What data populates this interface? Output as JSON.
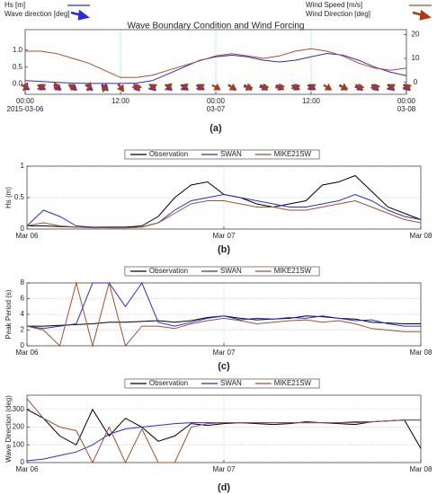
{
  "chart_data": [
    {
      "type": "line",
      "title": "Wave Boundary Condition and Wind Forcing",
      "caption": "(a)",
      "x": [
        0,
        2,
        4,
        6,
        8,
        10,
        12,
        14,
        16,
        18,
        20,
        22,
        24,
        26,
        28,
        30,
        32,
        34,
        36,
        38,
        40,
        42,
        44,
        46,
        48
      ],
      "xlim": [
        0,
        48
      ],
      "xticks": [
        {
          "value": 0,
          "label": "00:00",
          "sublabel": "2015-03-06"
        },
        {
          "value": 12,
          "label": "12:00"
        },
        {
          "value": 24,
          "label": "00:00",
          "sublabel": "03-07"
        },
        {
          "value": 36,
          "label": "12:00"
        },
        {
          "value": 48,
          "label": "00:00",
          "sublabel": "03-08"
        }
      ],
      "ylim": [
        -0.3,
        1.6
      ],
      "yticks": [
        {
          "value": 0,
          "label": "0.0"
        },
        {
          "value": 0.5,
          "label": "0.5"
        },
        {
          "value": 1,
          "label": "1.0"
        }
      ],
      "y2lim": [
        -5,
        22
      ],
      "y2ticks": [
        0,
        10,
        20
      ],
      "grid": true,
      "grid_color": "#5fd0e6",
      "legend": "top-split",
      "series": [
        {
          "name": "Hs [m]",
          "color": "#2b2bd9",
          "values": [
            0.1,
            0.08,
            0.05,
            0.03,
            0.02,
            0.02,
            0.02,
            0.03,
            0.1,
            0.3,
            0.5,
            0.7,
            0.8,
            0.85,
            0.8,
            0.7,
            0.65,
            0.7,
            0.8,
            0.9,
            0.85,
            0.7,
            0.5,
            0.35,
            0.25
          ]
        },
        {
          "name": "Wind Speed [m/s]",
          "color": "#b04a2a",
          "axis": "y2",
          "values": [
            13,
            13,
            12,
            10,
            8,
            5,
            2,
            2,
            3,
            5,
            7,
            9,
            11,
            12,
            11,
            10,
            11,
            13,
            14,
            13,
            11,
            8,
            6,
            5,
            6
          ]
        }
      ],
      "arrows": [
        {
          "name": "Wave direction [deg]",
          "color": "#2b2bd9",
          "values": [
            120,
            120,
            125,
            130,
            130,
            135,
            140,
            140,
            135,
            130,
            125,
            120,
            120,
            120,
            125,
            125,
            120,
            120,
            120,
            125,
            125,
            130,
            130,
            130,
            130
          ]
        },
        {
          "name": "Wind Direction [deg]",
          "color": "#b03a10",
          "values": [
            30,
            60,
            330,
            300,
            20,
            200,
            150,
            90,
            60,
            45,
            50,
            60,
            120,
            130,
            100,
            90,
            80,
            70,
            60,
            120,
            110,
            90,
            80,
            60,
            70
          ]
        }
      ]
    },
    {
      "type": "line",
      "y_label": "Hs (m)",
      "caption": "(b)",
      "x": [
        0,
        2,
        4,
        6,
        8,
        10,
        12,
        14,
        16,
        18,
        20,
        22,
        24,
        26,
        28,
        30,
        32,
        34,
        36,
        38,
        40,
        42,
        44,
        46,
        48
      ],
      "xlim": [
        0,
        48
      ],
      "xticks": [
        {
          "value": 0,
          "label": "Mar 06"
        },
        {
          "value": 24,
          "label": "Mar 07"
        },
        {
          "value": 48,
          "label": "Mar 08"
        }
      ],
      "ylim": [
        0,
        1
      ],
      "yticks": [
        0,
        0.5,
        1
      ],
      "grid": true,
      "grid_color": "#cccccc",
      "legend": "top",
      "series": [
        {
          "name": "Observation",
          "color": "#000000",
          "values": [
            0.05,
            0.05,
            0.04,
            0.03,
            0.03,
            0.03,
            0.03,
            0.05,
            0.2,
            0.5,
            0.7,
            0.75,
            0.55,
            0.5,
            0.4,
            0.35,
            0.4,
            0.45,
            0.7,
            0.75,
            0.85,
            0.6,
            0.35,
            0.25,
            0.15
          ]
        },
        {
          "name": "SWAN",
          "color": "#2b2bd9",
          "values": [
            0.05,
            0.3,
            0.2,
            0.05,
            0.03,
            0.02,
            0.02,
            0.03,
            0.1,
            0.3,
            0.45,
            0.5,
            0.55,
            0.5,
            0.45,
            0.4,
            0.35,
            0.35,
            0.4,
            0.45,
            0.55,
            0.45,
            0.3,
            0.2,
            0.15
          ]
        },
        {
          "name": "MIKE21SW",
          "color": "#a0522d",
          "values": [
            0.05,
            0.1,
            0.05,
            0.03,
            0.02,
            0.02,
            0.02,
            0.03,
            0.1,
            0.25,
            0.4,
            0.45,
            0.45,
            0.4,
            0.35,
            0.35,
            0.3,
            0.3,
            0.35,
            0.4,
            0.45,
            0.35,
            0.25,
            0.15,
            0.1
          ]
        }
      ]
    },
    {
      "type": "line",
      "y_label": "Peak Period (s)",
      "caption": "(c)",
      "x": [
        0,
        2,
        4,
        6,
        8,
        10,
        12,
        14,
        16,
        18,
        20,
        22,
        24,
        26,
        28,
        30,
        32,
        34,
        36,
        38,
        40,
        42,
        44,
        46,
        48
      ],
      "xlim": [
        0,
        48
      ],
      "xticks": [
        {
          "value": 0,
          "label": "Mar 06"
        },
        {
          "value": 24,
          "label": "Mar 07"
        },
        {
          "value": 48,
          "label": "Mar 08"
        }
      ],
      "ylim": [
        0,
        8
      ],
      "yticks": [
        0,
        2,
        4,
        6,
        8
      ],
      "grid": true,
      "grid_color": "#cccccc",
      "legend": "top",
      "series": [
        {
          "name": "Observation",
          "color": "#000000",
          "values": [
            2.5,
            2.5,
            2.6,
            2.7,
            2.8,
            3,
            3,
            3.1,
            3.2,
            3,
            3.2,
            3.6,
            3.8,
            3.5,
            3.3,
            3.4,
            3.5,
            3.8,
            3.7,
            3.5,
            3.4,
            3,
            2.9,
            2.8,
            2.8
          ]
        },
        {
          "name": "SWAN",
          "color": "#2b2bd9",
          "values": [
            2.5,
            2.2,
            2.5,
            2.8,
            8,
            8,
            5,
            8,
            3,
            2.5,
            3,
            3.5,
            3.8,
            3.3,
            3.5,
            3.4,
            3.6,
            3.5,
            3.8,
            3.5,
            3.2,
            3.3,
            2.8,
            2.5,
            2.5
          ]
        },
        {
          "name": "MIKE21SW",
          "color": "#a0522d",
          "values": [
            2.5,
            2,
            0,
            8,
            0,
            8,
            0,
            2.5,
            2.5,
            2.2,
            2.8,
            3.2,
            3.5,
            3.2,
            2.8,
            3,
            3.2,
            3.3,
            3,
            3.2,
            2.8,
            2.2,
            2,
            1.8,
            1.8
          ]
        }
      ]
    },
    {
      "type": "line",
      "y_label": "Wave Direction (deg)",
      "caption": "(d)",
      "x": [
        0,
        2,
        4,
        6,
        8,
        10,
        12,
        14,
        16,
        18,
        20,
        22,
        24,
        26,
        28,
        30,
        32,
        34,
        36,
        38,
        40,
        42,
        44,
        46,
        48
      ],
      "xlim": [
        0,
        48
      ],
      "xticks": [
        {
          "value": 0,
          "label": "Mar 06"
        },
        {
          "value": 24,
          "label": "Mar 07"
        },
        {
          "value": 48,
          "label": "Mar 08"
        }
      ],
      "ylim": [
        0,
        380
      ],
      "yticks": [
        0,
        100,
        200,
        300
      ],
      "grid": true,
      "grid_color": "#cccccc",
      "legend": "top",
      "series": [
        {
          "name": "Observation",
          "color": "#000000",
          "values": [
            300,
            250,
            150,
            100,
            300,
            150,
            250,
            200,
            120,
            150,
            220,
            210,
            220,
            225,
            220,
            215,
            220,
            230,
            225,
            220,
            215,
            230,
            235,
            240,
            80
          ]
        },
        {
          "name": "SWAN",
          "color": "#2b2bd9",
          "values": [
            10,
            20,
            40,
            60,
            100,
            160,
            190,
            200,
            210,
            220,
            225,
            225,
            225,
            225,
            225,
            225,
            225,
            225,
            225,
            225,
            230,
            230,
            235,
            240,
            240
          ]
        },
        {
          "name": "MIKE21SW",
          "color": "#a0522d",
          "values": [
            360,
            250,
            200,
            180,
            0,
            200,
            0,
            190,
            0,
            0,
            200,
            220,
            225,
            225,
            225,
            225,
            225,
            225,
            225,
            225,
            225,
            230,
            235,
            240,
            240
          ]
        }
      ]
    }
  ]
}
